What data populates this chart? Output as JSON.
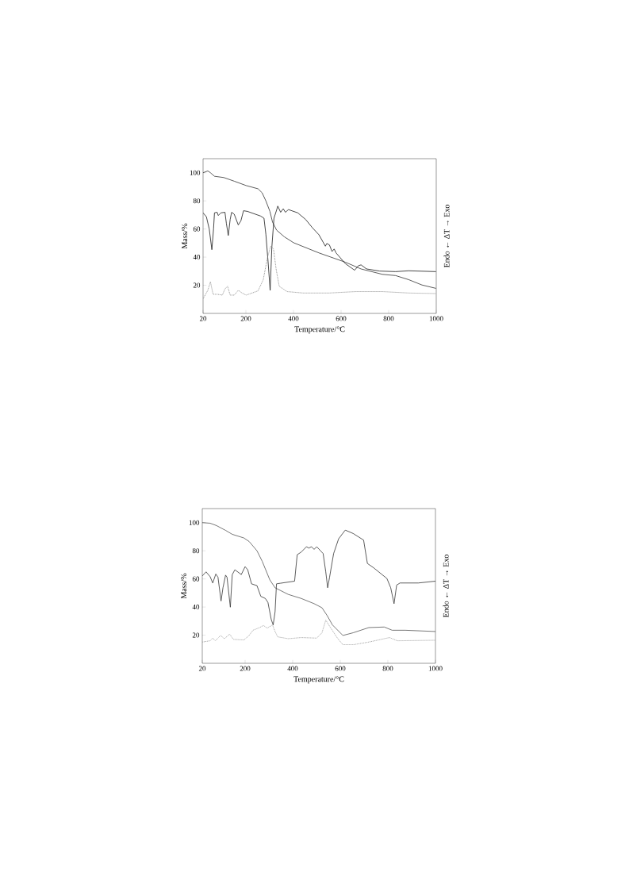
{
  "chart_data": [
    {
      "type": "line",
      "xlabel": "Temperature/°C",
      "ylabel": "Mass/%",
      "y2label": "Endo ← ΔT → Exo",
      "xlim": [
        20,
        1000
      ],
      "ylim": [
        0,
        110
      ],
      "xticks": [
        20,
        200,
        400,
        600,
        800,
        1000
      ],
      "yticks": [
        20,
        40,
        60,
        80,
        100
      ],
      "series": [
        {
          "color": "#333333",
          "line_style": "solid",
          "x": [
            20,
            40,
            51,
            68,
            107,
            151,
            201,
            251,
            268,
            284,
            301,
            312,
            329,
            362,
            401,
            507,
            618,
            684,
            773,
            829,
            884,
            940,
            999
          ],
          "values": [
            100,
            101.3,
            100,
            97.5,
            96.6,
            94,
            90.9,
            88.6,
            85.8,
            80,
            72.5,
            64.9,
            59.2,
            54.4,
            50.2,
            43,
            36.4,
            31.6,
            27.8,
            26.9,
            24,
            20.2,
            17.8
          ]
        },
        {
          "color": "#1a1a1a",
          "line_style": "solid",
          "x": [
            20,
            34,
            46,
            57,
            64,
            68,
            79,
            84,
            95,
            112,
            118,
            126,
            134,
            140,
            151,
            168,
            179,
            190,
            207,
            262,
            276,
            284,
            293,
            302,
            309,
            318,
            329,
            334,
            346,
            357,
            366,
            379,
            418,
            451,
            479,
            507,
            534,
            540,
            551,
            562,
            571,
            579,
            618,
            657,
            673,
            684,
            707,
            762,
            829,
            884,
            999
          ],
          "values": [
            71.5,
            68.7,
            60,
            45.3,
            60,
            71.5,
            71.9,
            69.6,
            71.5,
            71.9,
            64,
            55.4,
            66.8,
            71.9,
            70.5,
            62.9,
            65.8,
            73,
            72.5,
            69.2,
            67.7,
            56.3,
            37.3,
            16.4,
            46.8,
            67.7,
            73.4,
            76.3,
            71.9,
            74.4,
            71.9,
            73.8,
            71.5,
            66.8,
            61,
            55.9,
            47.8,
            49.7,
            48.7,
            44,
            45.8,
            43,
            35.4,
            30.7,
            33.9,
            34.5,
            31.6,
            30.1,
            29.7,
            30.3,
            29.7
          ]
        },
        {
          "color": "#888888",
          "line_style": "dotted",
          "x": [
            20,
            40,
            51,
            62,
            79,
            101,
            112,
            123,
            134,
            151,
            168,
            184,
            201,
            251,
            273,
            290,
            304,
            316,
            327,
            340,
            373,
            440,
            551,
            662,
            773,
            884,
            999
          ],
          "values": [
            10.4,
            16.4,
            22.5,
            13.6,
            13.6,
            13,
            17.4,
            19.3,
            13,
            13,
            16.4,
            14.5,
            13,
            16,
            24,
            39.2,
            47.8,
            45.9,
            31.6,
            19.3,
            15.5,
            14.5,
            14.5,
            15.5,
            15.5,
            14.5,
            14.1
          ]
        }
      ]
    },
    {
      "type": "line",
      "xlabel": "Temperature/°C",
      "ylabel": "Mass/%",
      "y2label": "Endo ← ΔT → Exo",
      "xlim": [
        20,
        1000
      ],
      "ylim": [
        0,
        110
      ],
      "xticks": [
        20,
        200,
        400,
        600,
        800,
        1000
      ],
      "yticks": [
        20,
        40,
        60,
        80,
        100
      ],
      "series": [
        {
          "color": "#555555",
          "line_style": "solid",
          "x": [
            20,
            53,
            80,
            118,
            146,
            195,
            217,
            250,
            272,
            304,
            326,
            381,
            436,
            490,
            523,
            545,
            567,
            611,
            654,
            720,
            785,
            818,
            873,
            1000
          ],
          "values": [
            100,
            99.6,
            97.9,
            94.5,
            91.7,
            89.1,
            86.6,
            80,
            72.5,
            59.3,
            53.7,
            49,
            46.1,
            42.4,
            39.5,
            33.9,
            27.3,
            19.8,
            21.7,
            25.4,
            25.8,
            23.5,
            23.5,
            22.6
          ]
        },
        {
          "color": "#333333",
          "line_style": "solid",
          "x": [
            20,
            36,
            53,
            64,
            77,
            86,
            99,
            107,
            118,
            124,
            138,
            146,
            157,
            184,
            200,
            211,
            227,
            250,
            266,
            285,
            296,
            310,
            318,
            326,
            332,
            348,
            408,
            419,
            436,
            447,
            458,
            468,
            479,
            490,
            501,
            517,
            528,
            539,
            547,
            555,
            572,
            593,
            621,
            654,
            698,
            714,
            741,
            796,
            812,
            826,
            837,
            851,
            928,
            1000
          ],
          "values": [
            62.1,
            65,
            61.6,
            57.1,
            63.5,
            61.2,
            44.3,
            53.7,
            62.7,
            61.2,
            39.9,
            63,
            66.5,
            63.1,
            68.7,
            66.5,
            56.5,
            55.2,
            47.6,
            46.1,
            43.3,
            31.1,
            27.3,
            36.7,
            56.5,
            56.9,
            58.4,
            77.2,
            79.1,
            81,
            82.9,
            81.9,
            82.9,
            81,
            82.9,
            80,
            78,
            65,
            53.7,
            61.2,
            78,
            88.5,
            94.7,
            92.3,
            87.6,
            71,
            67.8,
            60.3,
            53.7,
            42.4,
            55.6,
            57.1,
            57.1,
            58.4
          ]
        },
        {
          "color": "#999999",
          "line_style": "dotted",
          "x": [
            20,
            53,
            64,
            75,
            97,
            113,
            135,
            151,
            195,
            217,
            233,
            261,
            277,
            293,
            315,
            326,
            337,
            381,
            436,
            501,
            523,
            539,
            555,
            588,
            611,
            654,
            720,
            807,
            840,
            1000
          ],
          "values": [
            15.1,
            16,
            17.9,
            16,
            19.8,
            17.5,
            20.7,
            17,
            16.6,
            19.8,
            23.5,
            25.4,
            26.9,
            25,
            27.3,
            22.6,
            18.8,
            17.5,
            18.3,
            17.9,
            21.7,
            30.7,
            26.4,
            17.9,
            13.2,
            13.2,
            15.1,
            18.3,
            16,
            16.4
          ]
        }
      ]
    }
  ]
}
